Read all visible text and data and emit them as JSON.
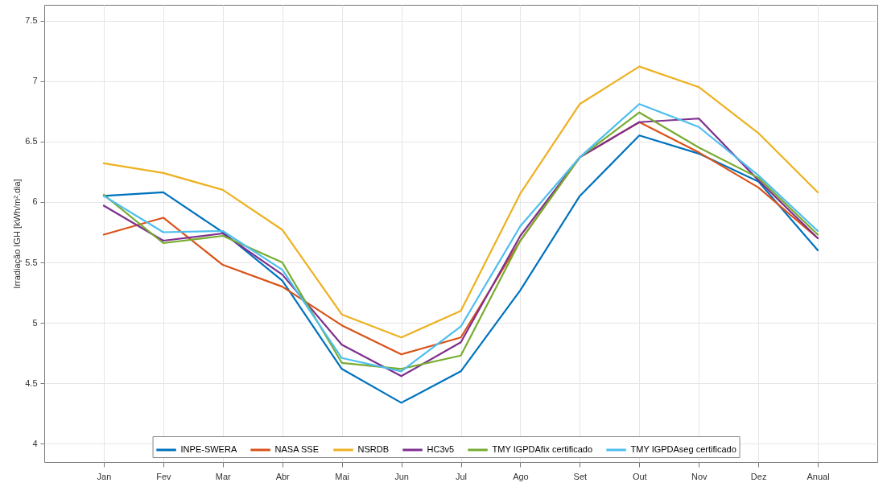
{
  "chart_data": {
    "type": "line",
    "ylabel": "Irradiação IGH [kWh/m².dia]",
    "categories": [
      "Jan",
      "Fev",
      "Mar",
      "Abr",
      "Mai",
      "Jun",
      "Jul",
      "Ago",
      "Set",
      "Out",
      "Nov",
      "Dez",
      "Anual"
    ],
    "series": [
      {
        "name": "INPE-SWERA",
        "color": "#0072bd",
        "values": [
          6.05,
          6.08,
          5.75,
          5.35,
          4.62,
          4.34,
          4.6,
          5.27,
          6.05,
          6.55,
          6.4,
          6.17,
          5.6
        ]
      },
      {
        "name": "NASA SSE",
        "color": "#d95319",
        "values": [
          5.73,
          5.87,
          5.48,
          5.3,
          4.98,
          4.74,
          4.88,
          5.68,
          6.37,
          6.66,
          6.41,
          6.12,
          5.7
        ]
      },
      {
        "name": "NSRDB",
        "color": "#edb120",
        "values": [
          6.32,
          6.24,
          6.1,
          5.77,
          5.07,
          4.88,
          5.1,
          6.07,
          6.81,
          7.12,
          6.95,
          6.57,
          6.08
        ]
      },
      {
        "name": "HC3v5",
        "color": "#7e2f8e",
        "values": [
          5.97,
          5.68,
          5.74,
          5.4,
          4.82,
          4.56,
          4.84,
          5.72,
          6.37,
          6.66,
          6.69,
          6.18,
          5.7
        ]
      },
      {
        "name": "TMY IGPDAfix certificado",
        "color": "#77ac30",
        "values": [
          6.06,
          5.66,
          5.72,
          5.5,
          4.67,
          4.62,
          4.73,
          5.68,
          6.37,
          6.74,
          6.45,
          6.2,
          5.73
        ]
      },
      {
        "name": "TMY IGPDAseg certificado",
        "color": "#4dbeee",
        "values": [
          6.05,
          5.75,
          5.76,
          5.44,
          4.71,
          4.6,
          4.97,
          5.8,
          6.37,
          6.81,
          6.62,
          6.22,
          5.76
        ]
      }
    ],
    "ylim": [
      3.85,
      7.63
    ],
    "yticks": [
      4,
      4.5,
      5,
      5.5,
      6,
      6.5,
      7,
      7.5
    ],
    "grid": true,
    "legend": "bottom",
    "marker": "none",
    "line_style": "solid"
  }
}
